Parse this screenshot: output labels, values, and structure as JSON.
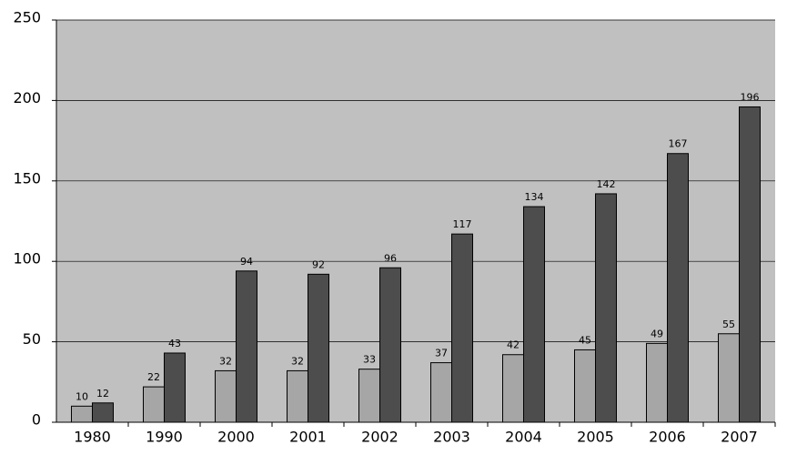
{
  "chart_data": {
    "type": "bar",
    "categories": [
      "1980",
      "1990",
      "2000",
      "2001",
      "2002",
      "2003",
      "2004",
      "2005",
      "2006",
      "2007"
    ],
    "series": [
      {
        "color": "#a6a6a6",
        "values": [
          10,
          22,
          32,
          32,
          33,
          37,
          42,
          45,
          49,
          55
        ]
      },
      {
        "color": "#4d4d4d",
        "values": [
          12,
          43,
          94,
          92,
          96,
          117,
          134,
          142,
          167,
          196
        ]
      }
    ],
    "ylim": [
      0,
      250
    ],
    "yticks": [
      0,
      50,
      100,
      150,
      200,
      250
    ],
    "grid": true
  }
}
